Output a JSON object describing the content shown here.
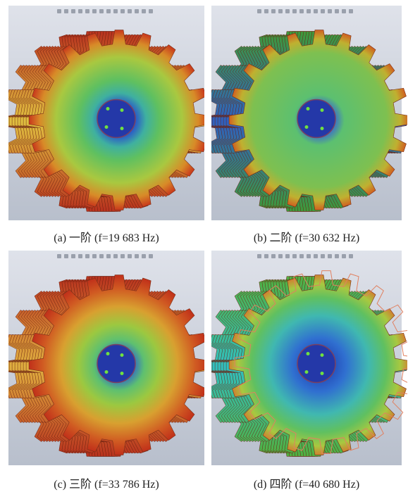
{
  "figure": {
    "panels": [
      {
        "caption": "(a) 一阶 (f=19 683 Hz)"
      },
      {
        "caption": "(b) 二阶 (f=30 632 Hz)"
      },
      {
        "caption": "(c) 三阶 (f=33 786 Hz)"
      },
      {
        "caption": "(d) 四阶 (f=40 680 Hz)"
      }
    ]
  }
}
